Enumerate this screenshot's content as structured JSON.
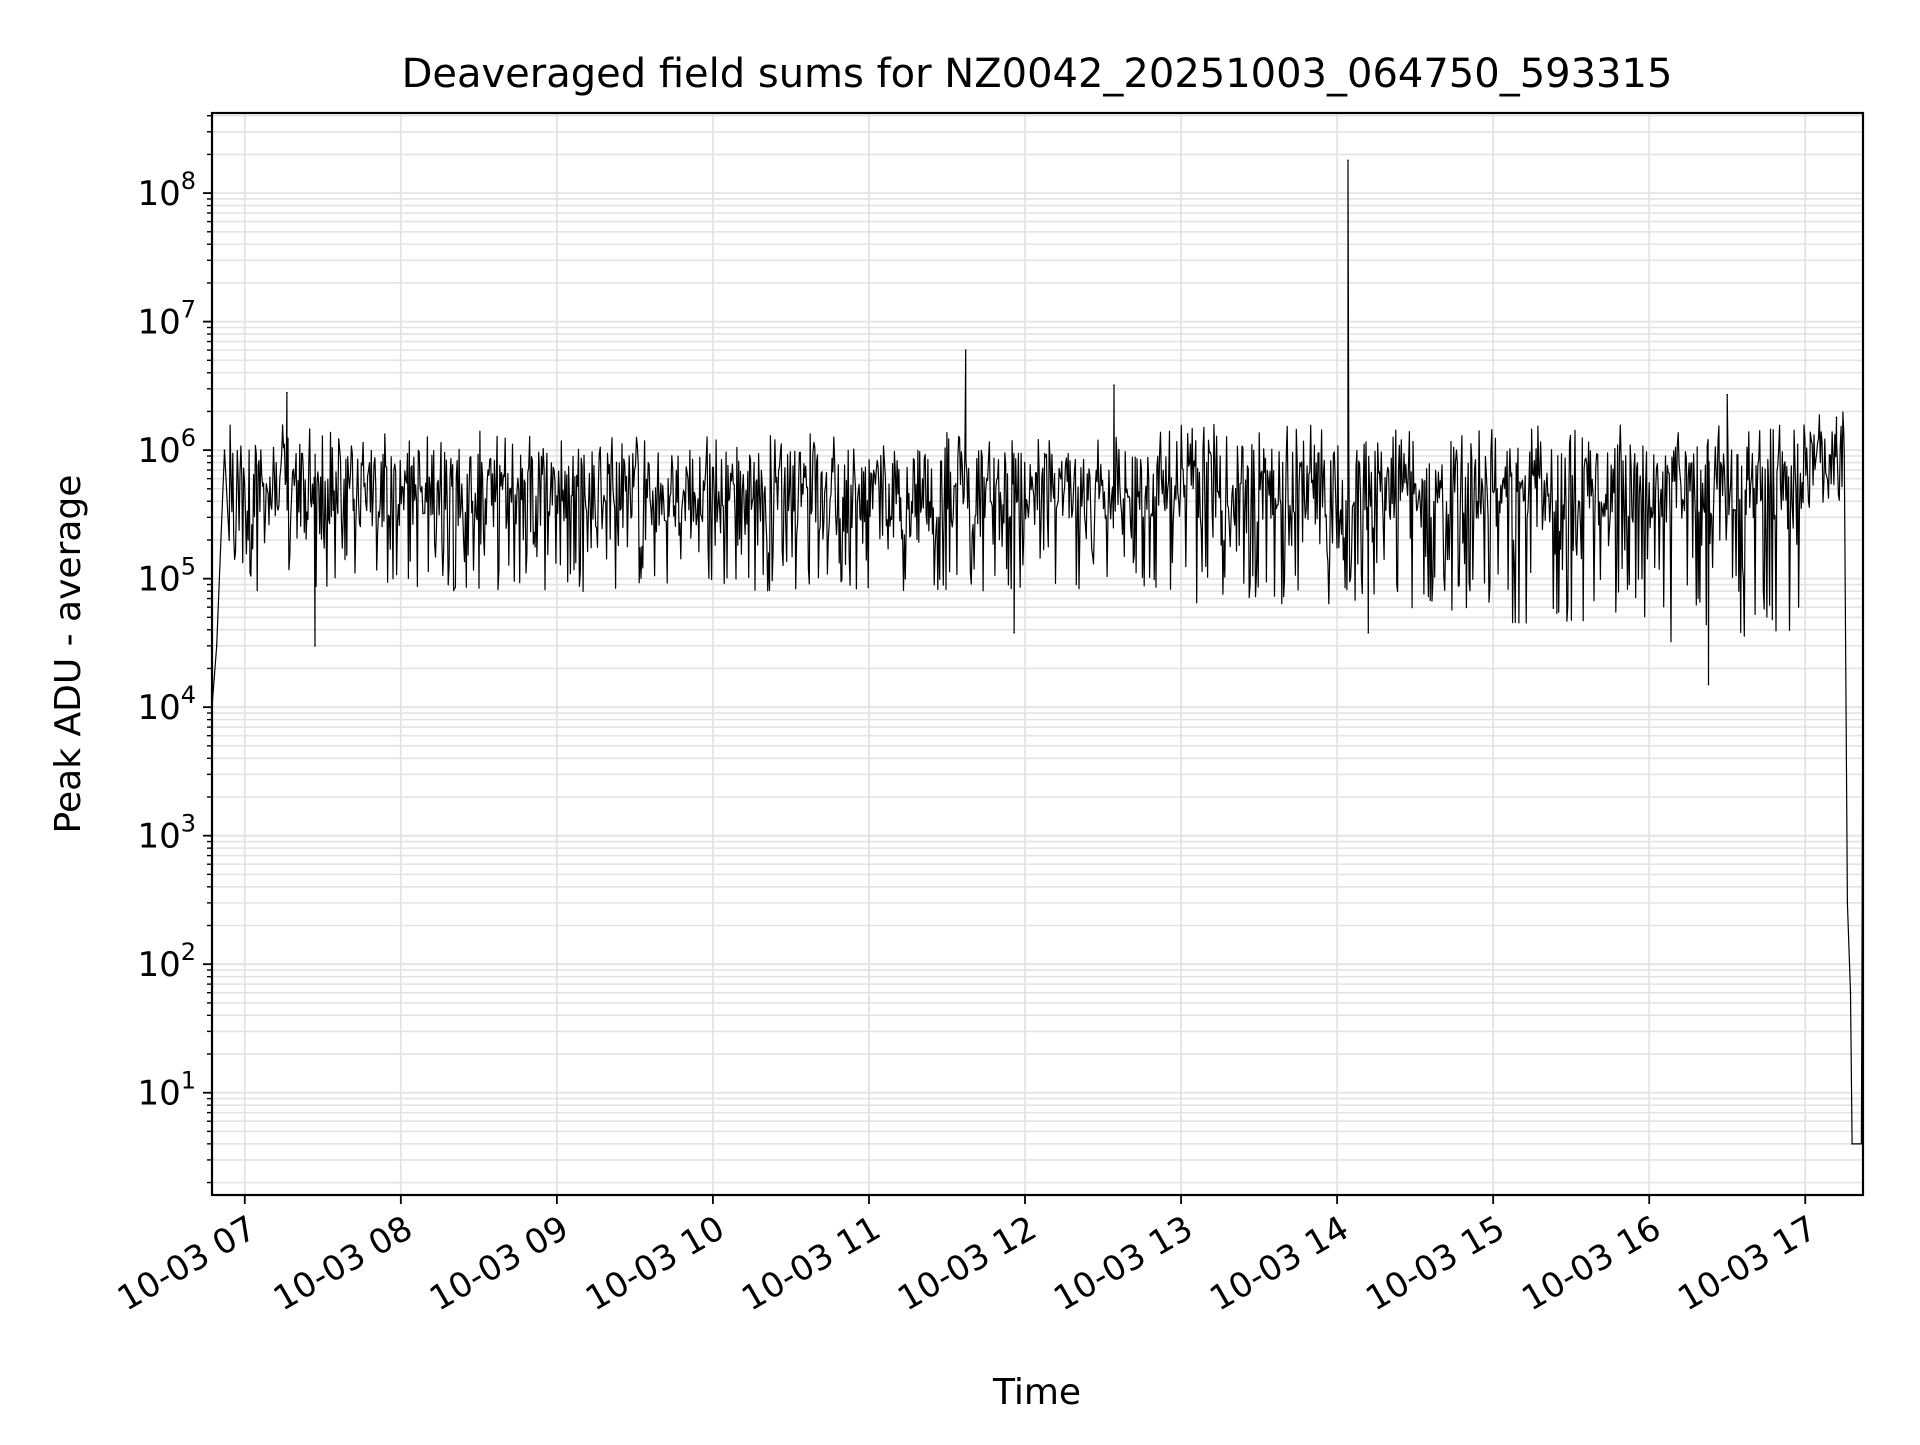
{
  "chart_data": {
    "type": "line",
    "title": "Deaveraged field sums for NZ0042_20251003_064750_593315",
    "xlabel": "Time",
    "ylabel": "Peak ADU - average",
    "yscale": "log",
    "ylim": [
      1.6,
      420000000
    ],
    "xlim_hours": [
      6.79,
      17.37
    ],
    "grid": true,
    "legend": "none",
    "line_color": "#000000",
    "grid_color": "#e3e3e3",
    "x_ticks": [
      {
        "hour": 7,
        "label": "10-03 07"
      },
      {
        "hour": 8,
        "label": "10-03 08"
      },
      {
        "hour": 9,
        "label": "10-03 09"
      },
      {
        "hour": 10,
        "label": "10-03 10"
      },
      {
        "hour": 11,
        "label": "10-03 11"
      },
      {
        "hour": 12,
        "label": "10-03 12"
      },
      {
        "hour": 13,
        "label": "10-03 13"
      },
      {
        "hour": 14,
        "label": "10-03 14"
      },
      {
        "hour": 15,
        "label": "10-03 15"
      },
      {
        "hour": 16,
        "label": "10-03 16"
      },
      {
        "hour": 17,
        "label": "10-03 17"
      }
    ],
    "y_ticks": [
      {
        "exp": 1,
        "base": "10",
        "sup": "1"
      },
      {
        "exp": 2,
        "base": "10",
        "sup": "2"
      },
      {
        "exp": 3,
        "base": "10",
        "sup": "3"
      },
      {
        "exp": 4,
        "base": "10",
        "sup": "4"
      },
      {
        "exp": 5,
        "base": "10",
        "sup": "5"
      },
      {
        "exp": 6,
        "base": "10",
        "sup": "6"
      },
      {
        "exp": 7,
        "base": "10",
        "sup": "7"
      },
      {
        "exp": 8,
        "base": "10",
        "sup": "8"
      }
    ],
    "envelope": {
      "description": "dense noisy series between low and high bounds (log10 ADU)",
      "segments": [
        {
          "t0": 6.8,
          "t1": 7.5,
          "lo": 4.9,
          "hi": 6.2
        },
        {
          "t0": 7.5,
          "t1": 12.0,
          "lo": 4.9,
          "hi": 6.15
        },
        {
          "t0": 12.0,
          "t1": 13.0,
          "lo": 4.9,
          "hi": 6.15
        },
        {
          "t0": 13.0,
          "t1": 14.0,
          "lo": 4.8,
          "hi": 6.2
        },
        {
          "t0": 14.0,
          "t1": 15.0,
          "lo": 4.75,
          "hi": 6.2
        },
        {
          "t0": 15.0,
          "t1": 16.0,
          "lo": 4.65,
          "hi": 6.2
        },
        {
          "t0": 16.0,
          "t1": 17.0,
          "lo": 4.5,
          "hi": 6.2
        },
        {
          "t0": 17.0,
          "t1": 17.25,
          "lo": 5.7,
          "hi": 6.3
        }
      ]
    },
    "key_points": [
      {
        "hour": 6.79,
        "value": 10000
      },
      {
        "hour": 6.82,
        "value": 30000
      },
      {
        "hour": 6.87,
        "value": 1000000
      },
      {
        "hour": 7.27,
        "value": 2800000
      },
      {
        "hour": 7.45,
        "value": 30000
      },
      {
        "hour": 11.62,
        "value": 6000000
      },
      {
        "hour": 11.93,
        "value": 38000
      },
      {
        "hour": 12.57,
        "value": 3200000
      },
      {
        "hour": 14.07,
        "value": 180000000
      },
      {
        "hour": 14.2,
        "value": 38000
      },
      {
        "hour": 16.38,
        "value": 15000
      },
      {
        "hour": 16.5,
        "value": 2700000
      },
      {
        "hour": 17.2,
        "value": 1800000
      },
      {
        "hour": 17.25,
        "value": 900000
      },
      {
        "hour": 17.27,
        "value": 300
      },
      {
        "hour": 17.29,
        "value": 60
      },
      {
        "hour": 17.3,
        "value": 4
      },
      {
        "hour": 17.36,
        "value": 4
      },
      {
        "hour": 17.37,
        "value": 30000
      }
    ]
  }
}
